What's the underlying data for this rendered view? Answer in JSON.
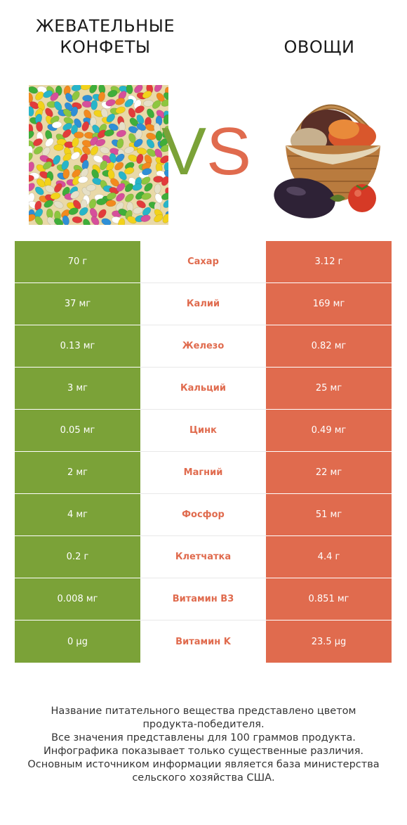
{
  "left_title": "ЖЕВАТЕЛЬНЫЕ КОНФЕТЫ",
  "right_title": "ОВОЩИ",
  "vs_text": "VS",
  "colors": {
    "left": "#7ba238",
    "right": "#e06b4e"
  },
  "rows": [
    {
      "left": "70 г",
      "name": "Сахар",
      "right": "3.12 г"
    },
    {
      "left": "37 мг",
      "name": "Калий",
      "right": "169 мг"
    },
    {
      "left": "0.13 мг",
      "name": "Железо",
      "right": "0.82 мг"
    },
    {
      "left": "3 мг",
      "name": "Кальций",
      "right": "25 мг"
    },
    {
      "left": "0.05 мг",
      "name": "Цинк",
      "right": "0.49 мг"
    },
    {
      "left": "2 мг",
      "name": "Магний",
      "right": "22 мг"
    },
    {
      "left": "4 мг",
      "name": "Фосфор",
      "right": "51 мг"
    },
    {
      "left": "0.2 г",
      "name": "Клетчатка",
      "right": "4.4 г"
    },
    {
      "left": "0.008 мг",
      "name": "Витамин B3",
      "right": "0.851 мг"
    },
    {
      "left": "0 µg",
      "name": "Витамин K",
      "right": "23.5 µg"
    }
  ],
  "footer": [
    "Название питательного вещества представлено цветом",
    "продукта-победителя.",
    "Все значения представлены для 100 граммов продукта.",
    "Инфографика показывает только существенные различия.",
    "Основным источником информации является база министерства",
    "сельского хозяйства США."
  ]
}
